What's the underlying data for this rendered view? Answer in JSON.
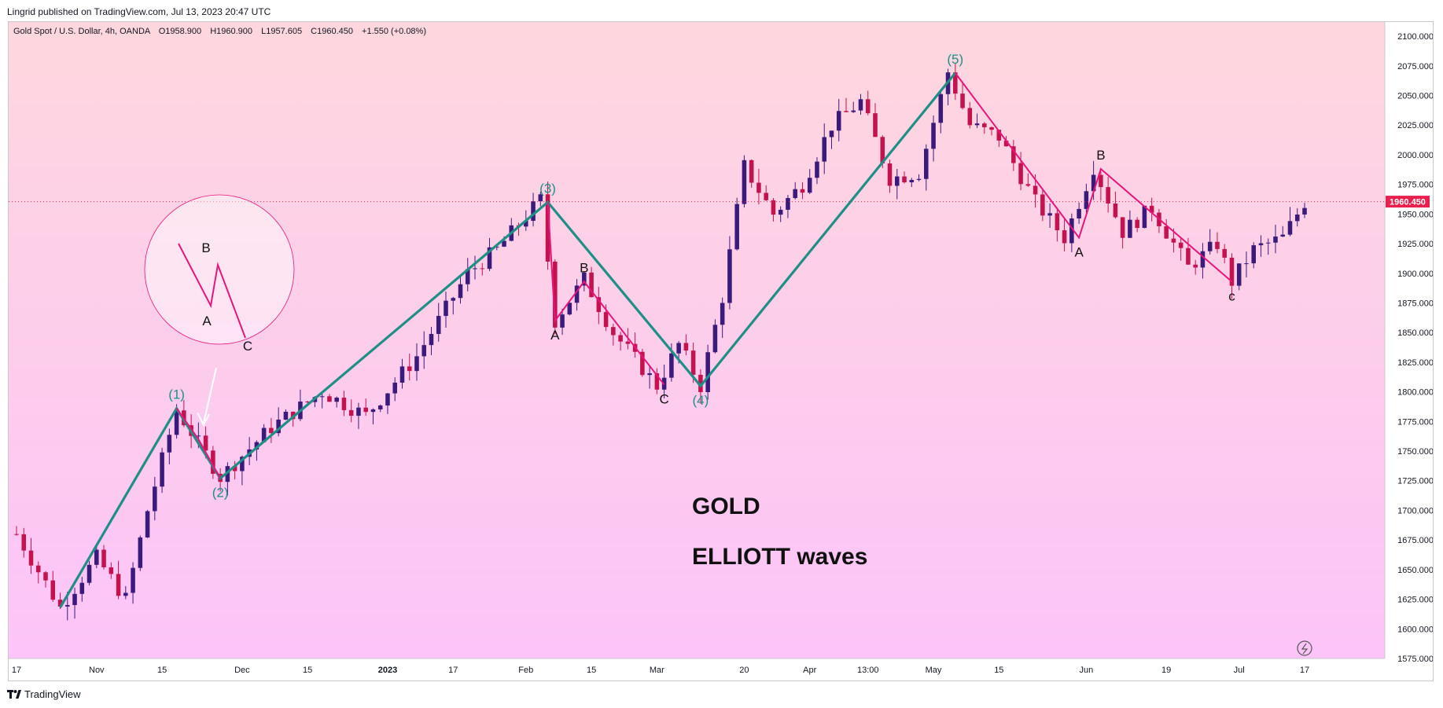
{
  "header": {
    "published": "Lingrid published on TradingView.com, Jul 13, 2023 20:47 UTC"
  },
  "legend": {
    "symbol": "Gold Spot / U.S. Dollar, 4h, OANDA",
    "open": "O1958.900",
    "high": "H1960.900",
    "low": "L1957.605",
    "close": "C1960.450",
    "change": "+1.550 (+0.08%)"
  },
  "footer": {
    "brand": "TradingView"
  },
  "colors": {
    "bg_top": "#fed7de",
    "bg_bottom": "#fcc4f8",
    "impulse": "#1f8f86",
    "correction": "#e5157a",
    "candle": "#3a1a7a",
    "price_tag": "#e8204e"
  },
  "chart_data": {
    "type": "candlestick",
    "title": "Gold Spot / U.S. Dollar, 4h, OANDA",
    "ylim": [
      1575,
      2112
    ],
    "y_ticks": [
      "2100.000",
      "2075.000",
      "2050.000",
      "2025.000",
      "2000.000",
      "1975.000",
      "1950.000",
      "1925.000",
      "1900.000",
      "1875.000",
      "1850.000",
      "1825.000",
      "1800.000",
      "1775.000",
      "1750.000",
      "1725.000",
      "1700.000",
      "1675.000",
      "1650.000",
      "1625.000",
      "1600.000",
      "1575.000"
    ],
    "x_ticks": [
      {
        "label": "17",
        "i": 0
      },
      {
        "label": "Nov",
        "i": 11
      },
      {
        "label": "15",
        "i": 20
      },
      {
        "label": "Dec",
        "i": 31
      },
      {
        "label": "15",
        "i": 40
      },
      {
        "label": "2023",
        "i": 51
      },
      {
        "label": "17",
        "i": 60
      },
      {
        "label": "Feb",
        "i": 70
      },
      {
        "label": "15",
        "i": 79
      },
      {
        "label": "Mar",
        "i": 88
      },
      {
        "label": "20",
        "i": 100
      },
      {
        "label": "Apr",
        "i": 109
      },
      {
        "label": "13:00",
        "i": 117
      },
      {
        "label": "May",
        "i": 126
      },
      {
        "label": "15",
        "i": 135
      },
      {
        "label": "Jun",
        "i": 147
      },
      {
        "label": "19",
        "i": 158
      },
      {
        "label": "Jul",
        "i": 168
      },
      {
        "label": "17",
        "i": 177
      }
    ],
    "n_bars": 180,
    "last_price": "1960.450",
    "last_value": 1960.45,
    "close_path": [
      [
        0,
        1680
      ],
      [
        6,
        1618
      ],
      [
        11,
        1660
      ],
      [
        15,
        1625
      ],
      [
        18,
        1700
      ],
      [
        22,
        1785
      ],
      [
        28,
        1728
      ],
      [
        35,
        1770
      ],
      [
        42,
        1800
      ],
      [
        48,
        1780
      ],
      [
        55,
        1830
      ],
      [
        62,
        1900
      ],
      [
        66,
        1920
      ],
      [
        72,
        1962
      ],
      [
        74,
        1860
      ],
      [
        78,
        1895
      ],
      [
        82,
        1850
      ],
      [
        88,
        1805
      ],
      [
        91,
        1840
      ],
      [
        94,
        1805
      ],
      [
        97,
        1880
      ],
      [
        100,
        1990
      ],
      [
        104,
        1950
      ],
      [
        108,
        1975
      ],
      [
        112,
        2025
      ],
      [
        116,
        2045
      ],
      [
        120,
        1980
      ],
      [
        124,
        1985
      ],
      [
        128,
        2070
      ],
      [
        131,
        2025
      ],
      [
        135,
        2015
      ],
      [
        140,
        1960
      ],
      [
        144,
        1930
      ],
      [
        148,
        1990
      ],
      [
        152,
        1935
      ],
      [
        156,
        1955
      ],
      [
        161,
        1905
      ],
      [
        165,
        1925
      ],
      [
        167,
        1893
      ],
      [
        170,
        1920
      ],
      [
        174,
        1930
      ],
      [
        177,
        1960
      ]
    ],
    "wave_impulse": [
      {
        "label": "(1)",
        "i": 22,
        "p": 1786,
        "pos": "above"
      },
      {
        "label": "(2)",
        "i": 28,
        "p": 1727,
        "pos": "below"
      },
      {
        "label": "(3)",
        "i": 73,
        "p": 1960,
        "pos": "above"
      },
      {
        "label": "(4)",
        "i": 94,
        "p": 1805,
        "pos": "below"
      },
      {
        "label": "(5)",
        "i": 129,
        "p": 2069,
        "pos": "above"
      }
    ],
    "wave_correction_1": [
      {
        "label": "A",
        "i": 74,
        "p": 1860,
        "pos": "below"
      },
      {
        "label": "B",
        "i": 78,
        "p": 1893,
        "pos": "above"
      },
      {
        "label": "C",
        "i": 89,
        "p": 1806,
        "pos": "below"
      }
    ],
    "wave_correction_2": [
      {
        "label": "",
        "i": 129,
        "p": 2069,
        "pos": "above"
      },
      {
        "label": "A",
        "i": 146,
        "p": 1930,
        "pos": "below"
      },
      {
        "label": "B",
        "i": 149,
        "p": 1988,
        "pos": "above"
      },
      {
        "label": "c",
        "i": 167,
        "p": 1893,
        "pos": "below"
      }
    ],
    "inset_labels": {
      "a": "A",
      "b": "B",
      "c": "C"
    },
    "annotation_title": "GOLD",
    "annotation_subtitle": "ELLIOTT waves"
  }
}
